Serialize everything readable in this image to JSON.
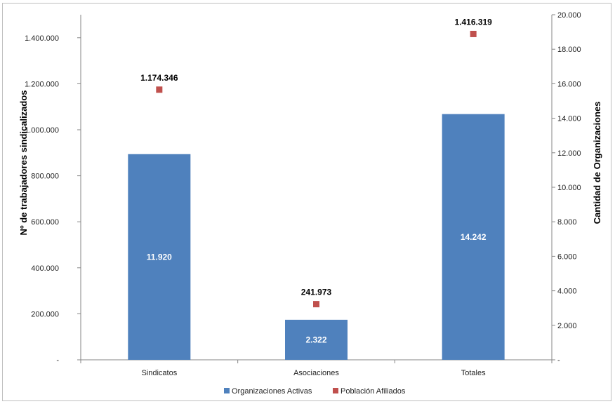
{
  "chart_data": {
    "type": "bar",
    "categories": [
      "Sindicatos",
      "Asociaciones",
      "Totales"
    ],
    "series": [
      {
        "name": "Organizaciones Activas",
        "type": "bar",
        "axis": "right",
        "color": "#4f81bd",
        "values": [
          11920,
          2322,
          14242
        ],
        "labels": [
          "11.920",
          "2.322",
          "14.242"
        ]
      },
      {
        "name": "Población Afiliados",
        "type": "scatter",
        "axis": "left",
        "color": "#c0504d",
        "values": [
          1174346,
          241973,
          1416319
        ],
        "labels": [
          "1.174.346",
          "241.973",
          "1.416.319"
        ]
      }
    ],
    "ylabel_left": "Nº  de trabajadores sindicalizados",
    "ylabel_right": "Cantidad de Organizaciones",
    "ylim_left": [
      0,
      1500000
    ],
    "ylim_right": [
      0,
      20000
    ],
    "yticks_left": [
      "-",
      "200.000",
      "400.000",
      "600.000",
      "800.000",
      "1.000.000",
      "1.200.000",
      "1.400.000"
    ],
    "yticks_left_values": [
      0,
      200000,
      400000,
      600000,
      800000,
      1000000,
      1200000,
      1400000
    ],
    "yticks_right": [
      "-",
      "2.000",
      "4.000",
      "6.000",
      "8.000",
      "10.000",
      "12.000",
      "14.000",
      "16.000",
      "18.000",
      "20.000"
    ],
    "yticks_right_values": [
      0,
      2000,
      4000,
      6000,
      8000,
      10000,
      12000,
      14000,
      16000,
      18000,
      20000
    ],
    "legend_position": "bottom",
    "grid": false
  }
}
